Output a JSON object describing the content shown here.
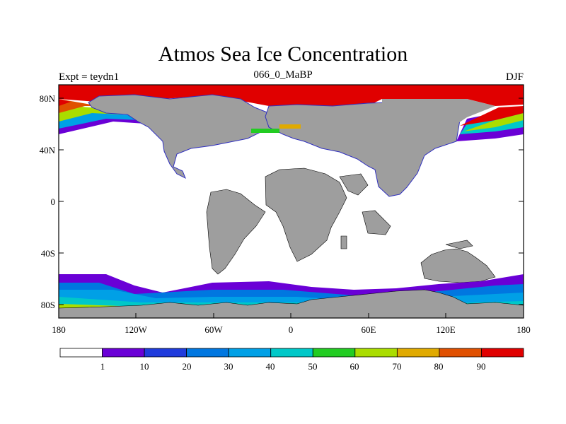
{
  "title": "Atmos Sea Ice Concentration",
  "subtitle": {
    "left": "Expt = teydn1",
    "center": "066_0_MaBP",
    "right": "DJF"
  },
  "axes": {
    "x_ticks": [
      "180",
      "120W",
      "60W",
      "0",
      "60E",
      "120E",
      "180"
    ],
    "y_ticks": [
      "80N",
      "40N",
      "0",
      "40S",
      "80S"
    ]
  },
  "colorbar": {
    "labels": [
      "1",
      "10",
      "20",
      "30",
      "40",
      "50",
      "60",
      "70",
      "80",
      "90"
    ],
    "colors": [
      "#ffffff",
      "#6a00d6",
      "#1f3bdc",
      "#0077e0",
      "#00a0e6",
      "#00c8c8",
      "#22cc22",
      "#aadd00",
      "#e0aa00",
      "#e05000",
      "#e00000"
    ]
  },
  "map_colors": {
    "land": "#9e9e9e",
    "ocean": "#ffffff",
    "ice_high": "#e00000"
  }
}
